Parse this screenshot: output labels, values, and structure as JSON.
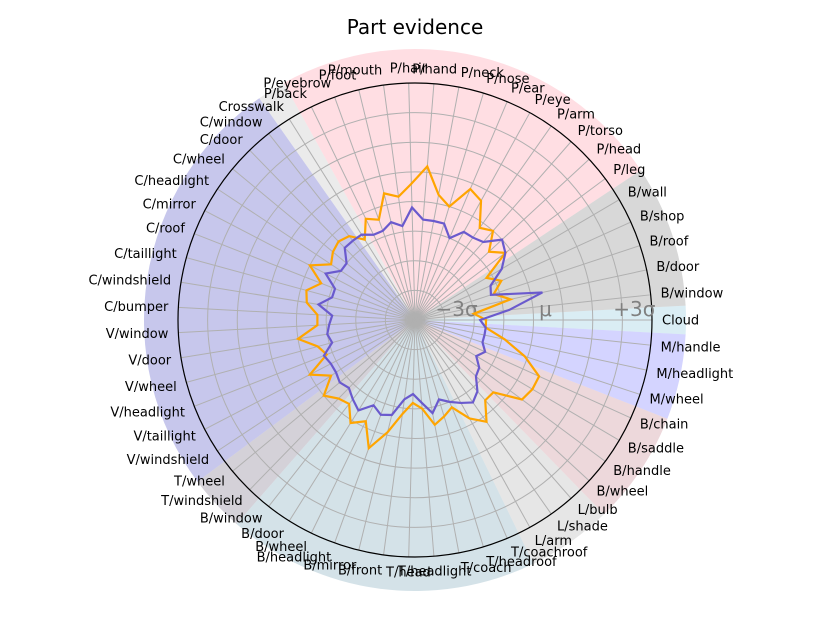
{
  "chart_data": {
    "type": "radar",
    "title": "Part evidence",
    "radial_range": [
      -4,
      4
    ],
    "ring_labels": [
      {
        "value": -3,
        "text": "−3σ"
      },
      {
        "value": 0,
        "text": "μ"
      },
      {
        "value": 3,
        "text": "+3σ"
      }
    ],
    "start_angle_deg": 0,
    "direction": "counterclockwise",
    "categories": [
      "Cloud",
      "B/window",
      "B/door",
      "B/roof",
      "B/shop",
      "B/wall",
      "P/leg",
      "P/head",
      "P/torso",
      "P/arm",
      "P/eye",
      "P/ear",
      "P/nose",
      "P/neck",
      "P/hand",
      "P/hair",
      "P/mouth",
      "P/foot",
      "P/eyebrow",
      "P/back",
      "Crosswalk",
      "C/window",
      "C/door",
      "C/wheel",
      "C/headlight",
      "C/mirror",
      "C/roof",
      "C/taillight",
      "C/windshield",
      "C/bumper",
      "V/window",
      "V/door",
      "V/wheel",
      "V/headlight",
      "V/taillight",
      "V/windshield",
      "T/wheel",
      "T/windshield",
      "B/window",
      "B/door",
      "B/wheel",
      "B/headlight",
      "B/mirror",
      "B/front",
      "T/head",
      "T/headlight",
      "T/coach",
      "T/headroof",
      "T/coachroof",
      "L/arm",
      "L/shade",
      "L/bulb",
      "B/wheel",
      "B/handle",
      "B/saddle",
      "B/chain",
      "M/wheel",
      "M/headlight",
      "M/handle"
    ],
    "series": [
      {
        "color": "#ffa500",
        "values": [
          -1.6,
          -2.0,
          -0.7,
          -1.2,
          -0.8,
          -1.2,
          -0.2,
          -0.6,
          0.0,
          -0.2,
          0.6,
          0.8,
          0.0,
          0.3,
          1.2,
          0.6,
          0.2,
          0.4,
          -0.4,
          -0.2,
          -0.8,
          -0.4,
          -0.3,
          -0.4,
          -0.6,
          0.0,
          -0.6,
          -0.2,
          -0.3,
          -0.7,
          -0.7,
          0.0,
          -0.6,
          -0.8,
          0.0,
          -0.6,
          0.0,
          -0.3,
          -0.4,
          0.1,
          -0.2,
          0.6,
          -0.1,
          -0.8,
          -1.2,
          -1.0,
          -0.4,
          -0.6,
          -0.8,
          -0.2,
          0.2,
          -0.4,
          -0.4,
          0.5,
          0.6,
          0.6,
          -0.1,
          -0.9,
          -1.6
        ]
      },
      {
        "color": "#6a5acd",
        "values": [
          -1.8,
          -0.8,
          0.4,
          -1.3,
          -1.2,
          -0.6,
          -0.2,
          0.0,
          -0.5,
          -0.6,
          -0.6,
          -1.0,
          -0.6,
          -0.6,
          -0.6,
          -0.2,
          -0.8,
          -0.6,
          -0.8,
          -0.8,
          -0.6,
          -0.6,
          -0.6,
          -1.0,
          -1.0,
          -0.6,
          -1.1,
          -1.1,
          -0.7,
          -1.2,
          -1.1,
          -1.0,
          -1.1,
          -0.7,
          -0.8,
          -0.8,
          -0.7,
          -0.8,
          -0.6,
          -0.4,
          -0.8,
          -0.6,
          -0.7,
          -1.3,
          -1.5,
          -1.2,
          -0.8,
          -1.2,
          -1.0,
          -0.8,
          -0.6,
          -0.8,
          -1.2,
          -1.3,
          -1.6,
          -1.4,
          -1.6,
          -1.6,
          -1.6
        ]
      }
    ],
    "sectors": [
      {
        "from_index": 0,
        "to_index": 0,
        "color": "#add8e6"
      },
      {
        "from_index": 1,
        "to_index": 5,
        "color": "#a9a9a9"
      },
      {
        "from_index": 6,
        "to_index": 19,
        "color": "#ffb6c1"
      },
      {
        "from_index": 20,
        "to_index": 20,
        "color": "#d3d3d3"
      },
      {
        "from_index": 21,
        "to_index": 35,
        "color": "#8282d4"
      },
      {
        "from_index": 36,
        "to_index": 37,
        "color": "#a09aa8"
      },
      {
        "from_index": 38,
        "to_index": 48,
        "color": "#9fbfcc"
      },
      {
        "from_index": 49,
        "to_index": 51,
        "color": "#c8c8c8"
      },
      {
        "from_index": 52,
        "to_index": 55,
        "color": "#d8a8b0"
      },
      {
        "from_index": 56,
        "to_index": 58,
        "color": "#a0a0ff"
      }
    ],
    "grid": true
  }
}
